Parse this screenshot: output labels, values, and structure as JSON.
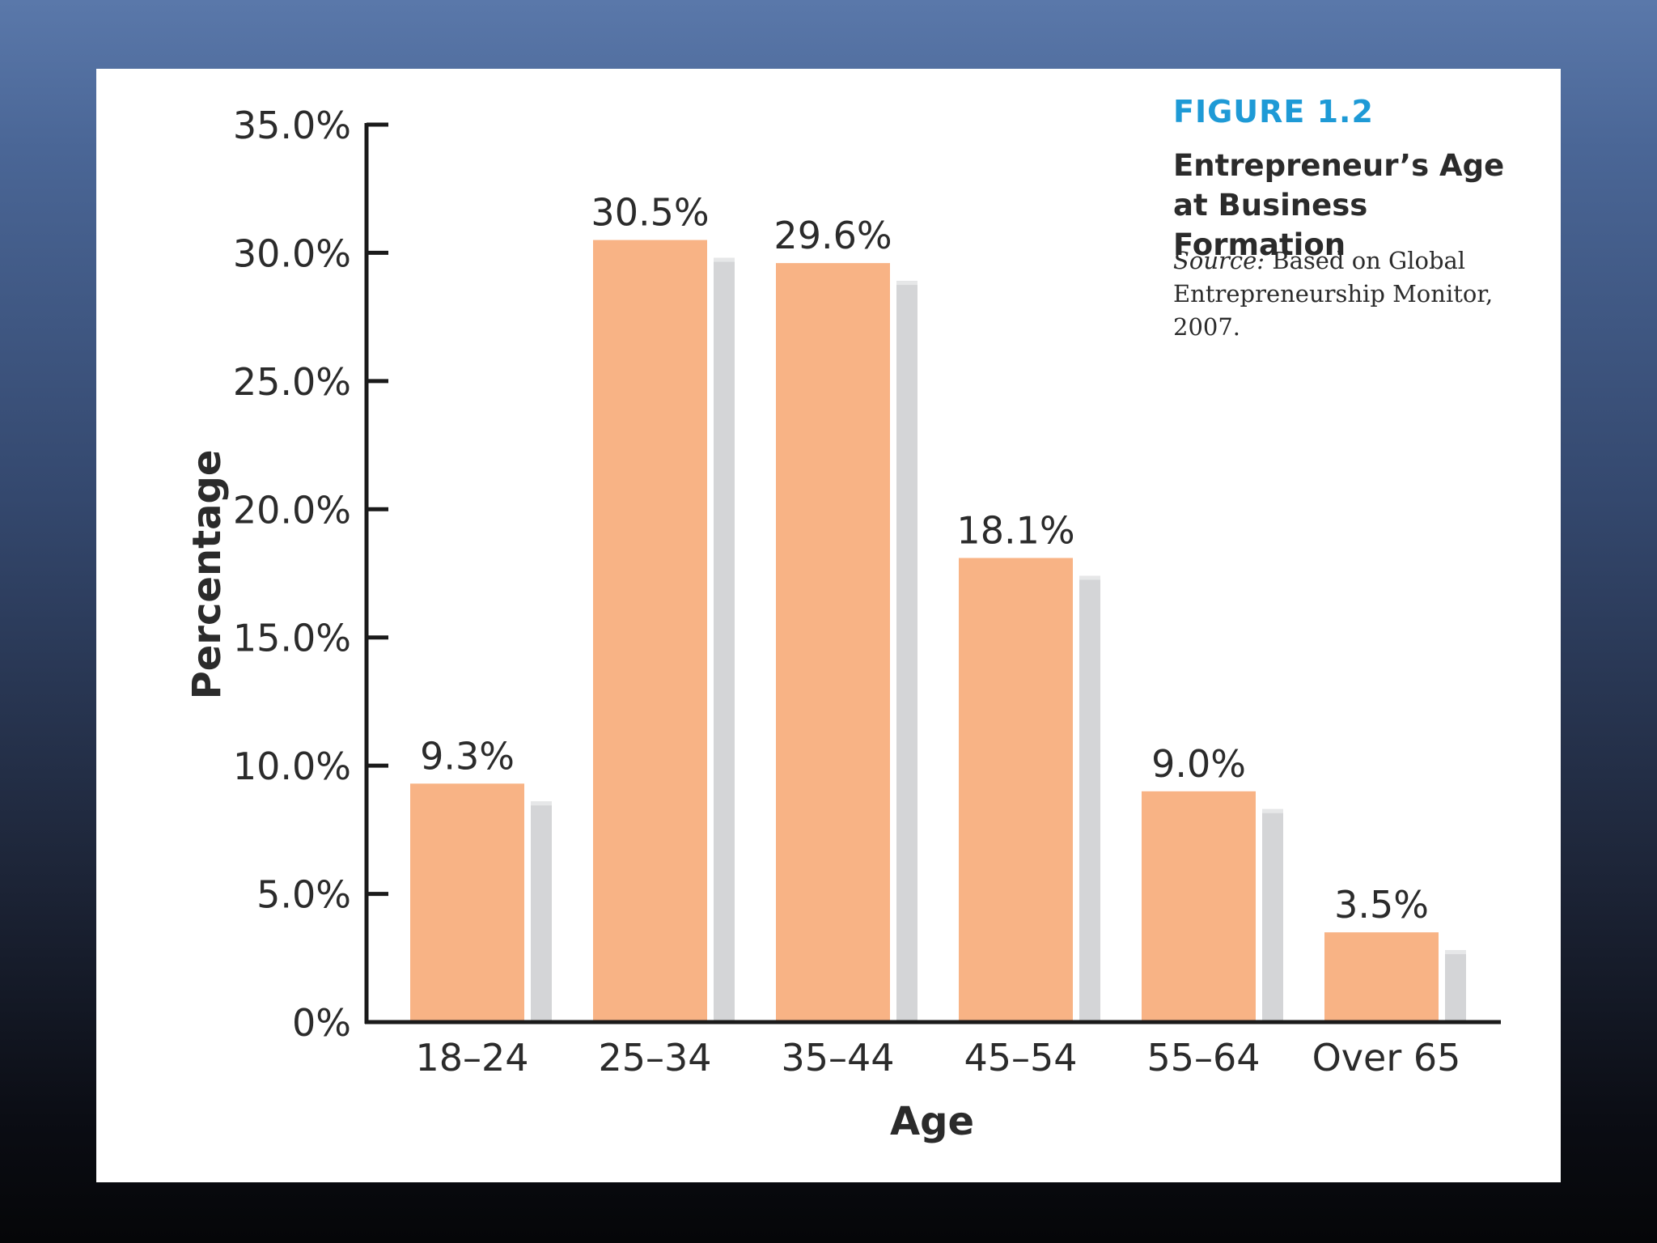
{
  "figure": {
    "label": "FIGURE 1.2",
    "title": "Entrepreneur’s Age at Business Formation",
    "source_label": "Source:",
    "source_text": "Based on Global Entrepreneurship Monitor, 2007."
  },
  "colors": {
    "bar": "#f8b385",
    "shadow": "#d4d5d7",
    "axis": "#1a1a1a",
    "label_blue": "#1e9ad6"
  },
  "chart_data": {
    "type": "bar",
    "xlabel": "Age",
    "ylabel": "Percentage",
    "ylim": [
      0,
      35
    ],
    "yticks": [
      "0%",
      "5.0%",
      "10.0%",
      "15.0%",
      "20.0%",
      "25.0%",
      "30.0%",
      "35.0%"
    ],
    "ytick_values": [
      0,
      5,
      10,
      15,
      20,
      25,
      30,
      35
    ],
    "categories": [
      "18–24",
      "25–34",
      "35–44",
      "45–54",
      "55–64",
      "Over 65"
    ],
    "values": [
      9.3,
      30.5,
      29.6,
      18.1,
      9.0,
      3.5
    ],
    "data_labels": [
      "9.3%",
      "30.5%",
      "29.6%",
      "18.1%",
      "9.0%",
      "3.5%"
    ],
    "grid": false,
    "legend": "none"
  }
}
